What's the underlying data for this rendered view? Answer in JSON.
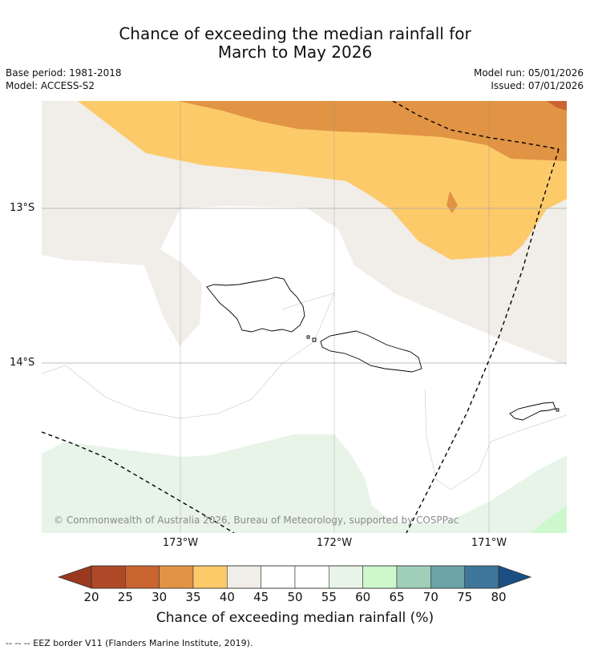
{
  "title": {
    "line1": "Chance of exceeding the median rainfall for",
    "line2": "March to May 2026"
  },
  "meta": {
    "base_period": "Base period: 1981-2018",
    "model": "Model: ACCESS-S2",
    "model_run": "Model run: 05/01/2026",
    "issued": "Issued: 07/01/2026"
  },
  "map": {
    "lat_labels": [
      "13°S",
      "14°S"
    ],
    "lon_labels": [
      "173°W",
      "172°W",
      "171°W"
    ],
    "copyright": "© Commonwealth of Australia 2026, Bureau of Meteorology, supported by COSPPac",
    "colors": {
      "c30_35": "#e09444",
      "c35_40": "#fdca6a",
      "c40_45": "#f1ede8",
      "c45_55": "#ffffff",
      "c55_60": "#e8f4e8",
      "c60_65": "#ccf8cc",
      "coast": "#000000",
      "eez": "#000000"
    }
  },
  "colorbar": {
    "ticks": [
      "20",
      "25",
      "30",
      "35",
      "40",
      "45",
      "50",
      "55",
      "60",
      "65",
      "70",
      "75",
      "80"
    ],
    "colors": [
      "#af4827",
      "#ca6431",
      "#e09444",
      "#fdca6a",
      "#f1ede8",
      "#ffffff",
      "#ffffff",
      "#e8f4e8",
      "#ccf8cc",
      "#9fcfb8",
      "#6da4a7",
      "#3f769b"
    ],
    "under_color": "#9b3820",
    "over_color": "#1b4f84",
    "label": "Chance of exceeding median rainfall (%)"
  },
  "footer": "--  --  -- EEZ border V11 (Flanders Marine Institute, 2019)."
}
